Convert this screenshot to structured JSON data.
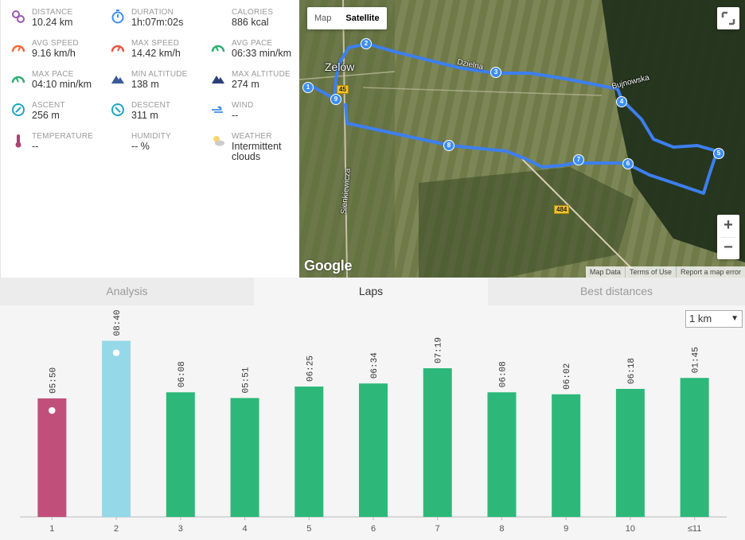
{
  "stats": [
    {
      "label": "DISTANCE",
      "value": "10.24 km",
      "icon": "distance-icon",
      "color": "#9b59b6"
    },
    {
      "label": "DURATION",
      "value": "1h:07m:02s",
      "icon": "stopwatch-icon",
      "color": "#3d8ef0"
    },
    {
      "label": "CALORIES",
      "value": "886 kcal",
      "icon": "flame-icon",
      "color": "#f26b3a"
    },
    {
      "label": "AVG SPEED",
      "value": "9.16 km/h",
      "icon": "speedometer-icon",
      "color": "#f26b3a"
    },
    {
      "label": "MAX SPEED",
      "value": "14.42 km/h",
      "icon": "speedometer-icon",
      "color": "#e9573f"
    },
    {
      "label": "AVG PACE",
      "value": "06:33 min/km",
      "icon": "pace-gauge-icon",
      "color": "#2eaf74"
    },
    {
      "label": "MAX PACE",
      "value": "04:10 min/km",
      "icon": "pace-gauge-icon",
      "color": "#2eaf74"
    },
    {
      "label": "MIN ALTITUDE",
      "value": "138 m",
      "icon": "mountain-icon",
      "color": "#3b5b9a"
    },
    {
      "label": "MAX ALTITUDE",
      "value": "274 m",
      "icon": "mountain-icon",
      "color": "#2a3f7a"
    },
    {
      "label": "ASCENT",
      "value": "256 m",
      "icon": "ascent-icon",
      "color": "#1fa5c0"
    },
    {
      "label": "DESCENT",
      "value": "311 m",
      "icon": "descent-icon",
      "color": "#1fa5c0"
    },
    {
      "label": "WIND",
      "value": "--",
      "icon": "wind-icon",
      "color": "#3d8ef0"
    },
    {
      "label": "TEMPERATURE",
      "value": "--",
      "icon": "thermometer-icon",
      "color": "#b04070"
    },
    {
      "label": "HUMIDITY",
      "value": "-- %",
      "icon": "humidity-icon",
      "color": "#7fb3f0"
    },
    {
      "label": "WEATHER",
      "value": "Intermittent clouds",
      "icon": "cloud-sun-icon",
      "color": "#cccccc"
    }
  ],
  "map": {
    "type_map": "Map",
    "type_satellite": "Satellite",
    "active_type": "Satellite",
    "zoom_in": "+",
    "zoom_out": "−",
    "logo": "Google",
    "attribution": [
      "Map Data",
      "Terms of Use",
      "Report a map error"
    ],
    "place_town": "Zelów",
    "street_dzielna": "Dzielna",
    "street_bujnowska": "Bujnowska",
    "street_sienkiewicza": "Sienkiewicza",
    "road_number_1": "45",
    "road_number_2": "484",
    "waypoints": [
      "1",
      "2",
      "3",
      "4",
      "5",
      "6",
      "7",
      "8",
      "9"
    ],
    "route_color": "#3d7ff0"
  },
  "tabs": [
    {
      "label": "Analysis",
      "active": false
    },
    {
      "label": "Laps",
      "active": true
    },
    {
      "label": "Best distances",
      "active": false
    }
  ],
  "distance_select": "1 km",
  "chart_data": {
    "type": "bar",
    "categories": [
      "1",
      "2",
      "3",
      "4",
      "5",
      "6",
      "7",
      "8",
      "9",
      "10",
      "≤11"
    ],
    "values_seconds": [
      350,
      520,
      368,
      351,
      385,
      394,
      439,
      368,
      362,
      378,
      105
    ],
    "labels": [
      "05:50",
      "08:40",
      "06:08",
      "05:51",
      "06:25",
      "06:34",
      "07:19",
      "06:08",
      "06:02",
      "06:18",
      "01:45"
    ],
    "fastest_index": 0,
    "slowest_index": 1,
    "colors": {
      "normal": "#2db87a",
      "fastest": "#c0507a",
      "slowest": "#95d8e8"
    }
  }
}
